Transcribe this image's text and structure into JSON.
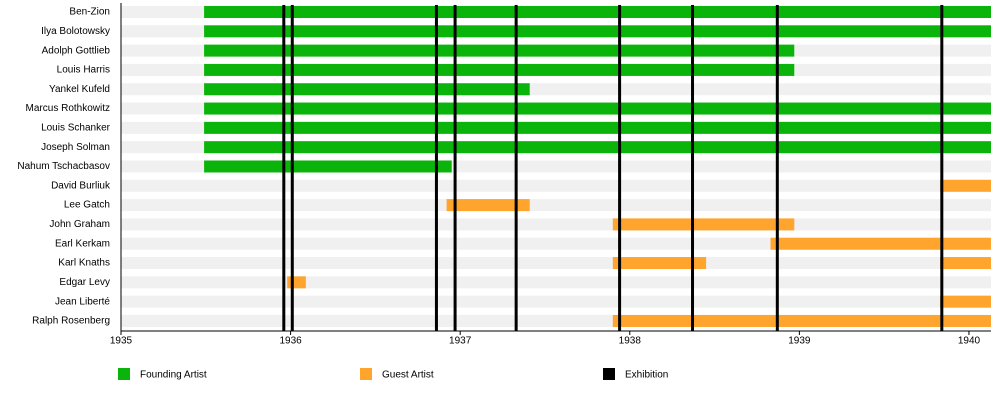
{
  "chart_data": {
    "type": "timeline",
    "categories": [
      "Ben-Zion",
      "Ilya Bolotowsky",
      "Adolph Gottlieb",
      "Louis Harris",
      "Yankel Kufeld",
      "Marcus Rothkowitz",
      "Louis Schanker",
      "Joseph Solman",
      "Nahum Tschacbasov",
      "David Burliuk",
      "Lee Gatch",
      "John Graham",
      "Earl Kerkam",
      "Karl Knaths",
      "Edgar Levy",
      "Jean Liberté",
      "Ralph Rosenberg"
    ],
    "series": [
      {
        "name": "Founding Artist",
        "color": "#0ab40a",
        "values": [
          [
            [
              1935.49,
              1940.13
            ]
          ],
          [
            [
              1935.49,
              1940.13
            ]
          ],
          [
            [
              1935.49,
              1938.97
            ]
          ],
          [
            [
              1935.49,
              1938.97
            ]
          ],
          [
            [
              1935.49,
              1937.41
            ]
          ],
          [
            [
              1935.49,
              1940.13
            ]
          ],
          [
            [
              1935.49,
              1940.13
            ]
          ],
          [
            [
              1935.49,
              1940.13
            ]
          ],
          [
            [
              1935.49,
              1936.95
            ]
          ],
          [],
          [],
          [],
          [],
          [],
          [],
          [],
          []
        ]
      },
      {
        "name": "Guest Artist",
        "color": "#ffa42c",
        "values": [
          [],
          [],
          [],
          [],
          [],
          [],
          [],
          [],
          [],
          [
            [
              1939.83,
              1940.13
            ]
          ],
          [
            [
              1936.92,
              1937.41
            ]
          ],
          [
            [
              1937.9,
              1938.97
            ]
          ],
          [
            [
              1938.83,
              1940.13
            ]
          ],
          [
            [
              1937.9,
              1938.45
            ],
            [
              1939.83,
              1940.13
            ]
          ],
          [
            [
              1935.98,
              1936.09
            ]
          ],
          [
            [
              1939.83,
              1940.13
            ]
          ],
          [
            [
              1937.9,
              1940.13
            ]
          ]
        ]
      }
    ],
    "events": {
      "name": "Exhibition",
      "color": "#000000",
      "values": [
        1935.96,
        1936.01,
        1936.86,
        1936.97,
        1937.33,
        1937.94,
        1938.37,
        1938.87,
        1939.84
      ]
    },
    "xlim": [
      1935,
      1940.13
    ],
    "xticks": [
      1935,
      1936,
      1937,
      1938,
      1939,
      1940
    ]
  }
}
